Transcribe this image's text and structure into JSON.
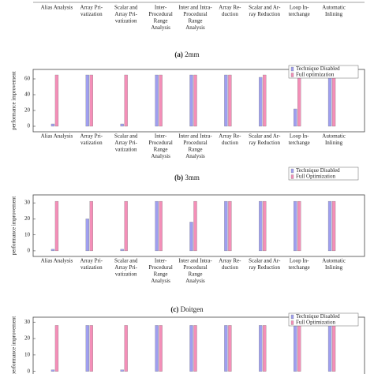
{
  "chart_data": [
    {
      "type": "bar",
      "caption_label": "(a)",
      "caption": "2mm",
      "categories": [
        [
          "Alias Analysis"
        ],
        [
          "Array Pri-",
          "vatization"
        ],
        [
          "Scalar and",
          "Array Pri-",
          "vatization"
        ],
        [
          "Inter-",
          "Procedural",
          "Range",
          "Analysis"
        ],
        [
          "Inter and Intra-",
          "Procedural",
          "Range",
          "Analysis"
        ],
        [
          "Array Re-",
          "duction"
        ],
        [
          "Scalar and Ar-",
          "ray Reduction"
        ],
        [
          "Loop In-",
          "terchange"
        ],
        [
          "Automatic",
          "Inlining"
        ]
      ],
      "series": []
    },
    {
      "type": "bar",
      "caption_label": "(b)",
      "caption": "3mm",
      "ylabel": "performance improvement",
      "categories": [
        [
          "Alias Analysis"
        ],
        [
          "Array Pri-",
          "vatization"
        ],
        [
          "Scalar and",
          "Array Pri-",
          "vatization"
        ],
        [
          "Inter-",
          "Procedural",
          "Range",
          "Analysis"
        ],
        [
          "Inter and Intra-",
          "Procedural",
          "Range",
          "Analysis"
        ],
        [
          "Array Re-",
          "duction"
        ],
        [
          "Scalar and Ar-",
          "ray Reduction"
        ],
        [
          "Loop In-",
          "terchange"
        ],
        [
          "Automatic",
          "Inlining"
        ]
      ],
      "series": [
        {
          "name": "Technique Disabled",
          "color": "#9f9ff0",
          "values": [
            3,
            65,
            3,
            65,
            65,
            65,
            62,
            22,
            65
          ]
        },
        {
          "name": "Full optimization",
          "color": "#f48fb8",
          "values": [
            65,
            65,
            65,
            65,
            65,
            65,
            65,
            65,
            65
          ]
        }
      ],
      "ylim": [
        -7,
        72
      ],
      "yticks": [
        0,
        20,
        40,
        60
      ]
    },
    {
      "type": "bar",
      "caption_label": "(c)",
      "caption": "Doitgen",
      "ylabel": "performance improvement",
      "categories": [
        [
          "Alias Analysis"
        ],
        [
          "Array Pri-",
          "vatization"
        ],
        [
          "Scalar and",
          "Array Pri-",
          "vatization"
        ],
        [
          "Inter-",
          "Procedural",
          "Range",
          "Analysis"
        ],
        [
          "Inter and Intra-",
          "Procedural",
          "Range",
          "Analysis"
        ],
        [
          "Array Re-",
          "duction"
        ],
        [
          "Scalar and Ar-",
          "ray Reduction"
        ],
        [
          "Loop In-",
          "terchange"
        ],
        [
          "Automatic",
          "Inlining"
        ]
      ],
      "series": [
        {
          "name": "Technique Disabled",
          "color": "#9f9ff0",
          "values": [
            1,
            20,
            1,
            31,
            18,
            31,
            31,
            31,
            31
          ]
        },
        {
          "name": "Full Optimization",
          "color": "#f48fb8",
          "values": [
            31,
            31,
            31,
            31,
            31,
            31,
            31,
            31,
            31
          ]
        }
      ],
      "ylim": [
        -3.5,
        35
      ],
      "yticks": [
        0,
        10,
        20,
        30
      ]
    },
    {
      "type": "bar",
      "ylabel": "performance improvement",
      "series": [
        {
          "name": "Technique Disabled",
          "color": "#9f9ff0",
          "values": [
            1,
            28,
            1,
            28,
            28,
            28,
            28,
            28,
            28
          ]
        },
        {
          "name": "Full Optimization",
          "color": "#f48fb8",
          "values": [
            28,
            28,
            28,
            28,
            28,
            28,
            28,
            28,
            28
          ]
        }
      ],
      "ylim": [
        -3.5,
        33
      ],
      "yticks": [
        0,
        10,
        20,
        30
      ]
    }
  ]
}
